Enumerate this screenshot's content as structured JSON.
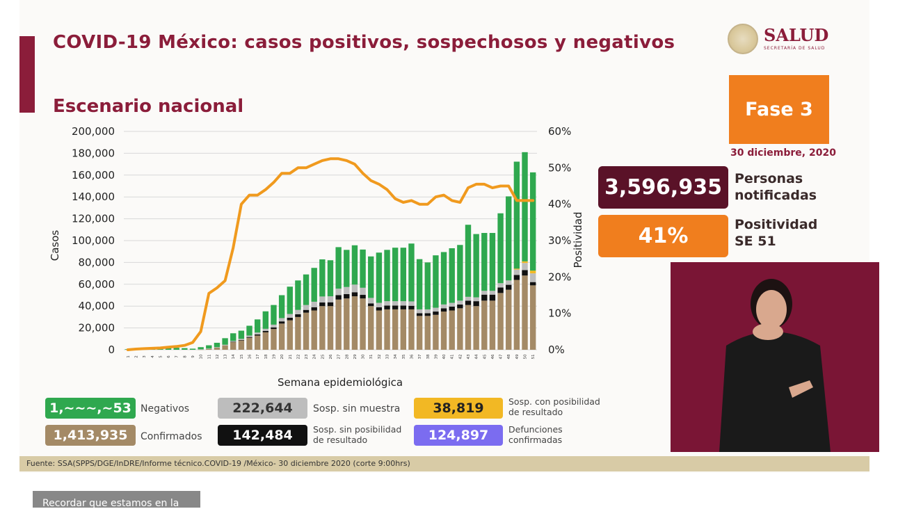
{
  "header": {
    "title": "COVID-19 México: casos positivos, sospechosos y negativos",
    "subtitle": "Escenario nacional",
    "logo_name": "SALUD",
    "logo_sub": "SECRETARÍA DE SALUD"
  },
  "phase": {
    "label": "Fase 3",
    "date": "30 diciembre, 2020"
  },
  "stats": {
    "notified_value": "3,596,935",
    "notified_label": "Personas notificadas",
    "positivity_value": "41%",
    "positivity_label": "Positividad SE 51"
  },
  "colors": {
    "maroon": "#8b1d3a",
    "dark_maroon": "#5a1228",
    "orange": "#f07e1e",
    "green": "#2fa84f",
    "brown": "#a48a66",
    "gray": "#bdbdbd",
    "black": "#111111",
    "yellow": "#f2b824",
    "purple": "#7b6cf0",
    "line": "#f09a1e"
  },
  "legend": [
    {
      "key": "negativos",
      "value": "1,~~~,~53",
      "label": "Negativos",
      "color": "#2fa84f"
    },
    {
      "key": "sosp_sin_muestra",
      "value": "222,644",
      "label": "Sosp. sin muestra",
      "color": "#bdbdbd"
    },
    {
      "key": "sosp_con_posibilidad",
      "value": "38,819",
      "label": "Sosp. con posibilidad de resultado",
      "color": "#f2b824"
    },
    {
      "key": "confirmados",
      "value": "1,413,935",
      "label": "Confirmados",
      "color": "#a48a66"
    },
    {
      "key": "sosp_sin_posibilidad",
      "value": "142,484",
      "label": "Sosp. sin posibilidad de resultado",
      "color": "#111111"
    },
    {
      "key": "defunciones",
      "value": "124,897",
      "label": "Defunciones confirmadas",
      "color": "#7b6cf0"
    }
  ],
  "source": "Fuente: SSA(SPPS/DGE/InDRE/Informe técnico.COVID-19 /México- 30 diciembre 2020 (corte 9:00hrs)",
  "toast": "Recordar que estamos en la",
  "chart_data": {
    "type": "bar",
    "stacked": true,
    "xlabel": "Semana epidemiológica",
    "ylabel": "Casos",
    "y2label": "Positividad",
    "ylim": [
      0,
      200000
    ],
    "y2lim": [
      0,
      60
    ],
    "yticks": [
      "0",
      "20,000",
      "40,000",
      "60,000",
      "80,000",
      "100,000",
      "120,000",
      "140,000",
      "160,000",
      "180,000",
      "200,000"
    ],
    "y2ticks": [
      "0%",
      "10%",
      "20%",
      "30%",
      "40%",
      "50%",
      "60%"
    ],
    "grid": true,
    "categories": [
      "1",
      "2",
      "3",
      "4",
      "5",
      "6",
      "7",
      "8",
      "9",
      "10",
      "11",
      "12",
      "13",
      "14",
      "15",
      "16",
      "17",
      "18",
      "19",
      "20",
      "21",
      "22",
      "23",
      "24",
      "25",
      "26",
      "27",
      "28",
      "29",
      "30",
      "31",
      "32",
      "33",
      "34",
      "35",
      "36",
      "37",
      "38",
      "39",
      "40",
      "41",
      "42",
      "43",
      "44",
      "45",
      "46",
      "47",
      "48",
      "49",
      "50",
      "51"
    ],
    "series": [
      {
        "name": "Confirmados",
        "color": "#a48a66",
        "values": [
          0,
          0,
          0,
          0,
          0,
          0,
          0,
          0,
          0,
          200,
          800,
          2000,
          4000,
          7000,
          8500,
          11000,
          13000,
          16000,
          19000,
          24000,
          27000,
          30000,
          34000,
          36000,
          40000,
          40000,
          46000,
          47000,
          49000,
          47000,
          40000,
          36000,
          37000,
          37000,
          37000,
          37000,
          31000,
          31000,
          32000,
          35000,
          36000,
          38000,
          41000,
          40000,
          45000,
          45000,
          52000,
          55000,
          64000,
          68000,
          59000
        ]
      },
      {
        "name": "Sosp. sin posibilidad de resultado",
        "color": "#111111",
        "values": [
          0,
          0,
          0,
          0,
          0,
          0,
          0,
          0,
          0,
          0,
          0,
          0,
          0,
          300,
          500,
          700,
          1000,
          1200,
          1500,
          2000,
          2300,
          2500,
          2500,
          3000,
          3300,
          3500,
          4000,
          4000,
          3700,
          3300,
          2500,
          3000,
          3500,
          3500,
          3500,
          3300,
          2500,
          2500,
          3000,
          3000,
          3500,
          3500,
          4000,
          4500,
          5500,
          5500,
          5000,
          4500,
          4500,
          5000,
          3000
        ]
      },
      {
        "name": "Sosp. sin muestra",
        "color": "#bdbdbd",
        "values": [
          0,
          0,
          0,
          0,
          0,
          0,
          0,
          0,
          0,
          200,
          300,
          400,
          600,
          800,
          1000,
          1300,
          1800,
          2000,
          2500,
          3000,
          3500,
          4000,
          4500,
          5000,
          5500,
          5500,
          6000,
          6500,
          7000,
          6500,
          5000,
          4000,
          4000,
          4000,
          4000,
          4000,
          3500,
          3500,
          3500,
          3500,
          3500,
          3500,
          3500,
          3500,
          3500,
          3500,
          4000,
          4000,
          5000,
          6500,
          8000
        ]
      },
      {
        "name": "Sosp. con posibilidad de resultado",
        "color": "#f2b824",
        "values": [
          0,
          0,
          0,
          0,
          0,
          0,
          0,
          0,
          0,
          0,
          0,
          0,
          0,
          0,
          0,
          0,
          0,
          0,
          0,
          0,
          0,
          0,
          0,
          0,
          0,
          0,
          0,
          0,
          0,
          0,
          0,
          0,
          0,
          0,
          0,
          0,
          0,
          0,
          0,
          0,
          0,
          0,
          0,
          0,
          0,
          0,
          0,
          0,
          800,
          1500,
          2500
        ]
      },
      {
        "name": "Negativos",
        "color": "#2fa84f",
        "values": [
          500,
          1000,
          2000,
          2000,
          2000,
          1800,
          1800,
          1500,
          1000,
          2000,
          3000,
          4000,
          6000,
          7000,
          7500,
          9000,
          12000,
          16000,
          18000,
          21000,
          25000,
          27000,
          28000,
          31000,
          34000,
          33000,
          38000,
          34000,
          36000,
          35000,
          38000,
          46000,
          47000,
          49000,
          49000,
          53000,
          46000,
          43000,
          48000,
          48000,
          50000,
          51000,
          66000,
          58000,
          53000,
          53000,
          64000,
          77000,
          98000,
          100000,
          90000
        ]
      }
    ],
    "line": {
      "name": "Positividad",
      "color": "#f09a1e",
      "values": [
        0,
        0.2,
        0.3,
        0.4,
        0.5,
        0.7,
        0.9,
        1.2,
        2,
        5,
        15.5,
        17,
        19,
        28,
        40,
        42.5,
        42.5,
        44,
        46,
        48.5,
        48.5,
        50,
        50,
        51,
        52,
        52.5,
        52.5,
        52,
        51,
        48.5,
        46.5,
        45.5,
        44,
        41.5,
        40.5,
        41,
        40,
        40,
        42,
        42.5,
        41,
        40.5,
        44.5,
        45.5,
        45.5,
        44.5,
        45,
        45,
        41,
        41,
        41
      ]
    }
  }
}
